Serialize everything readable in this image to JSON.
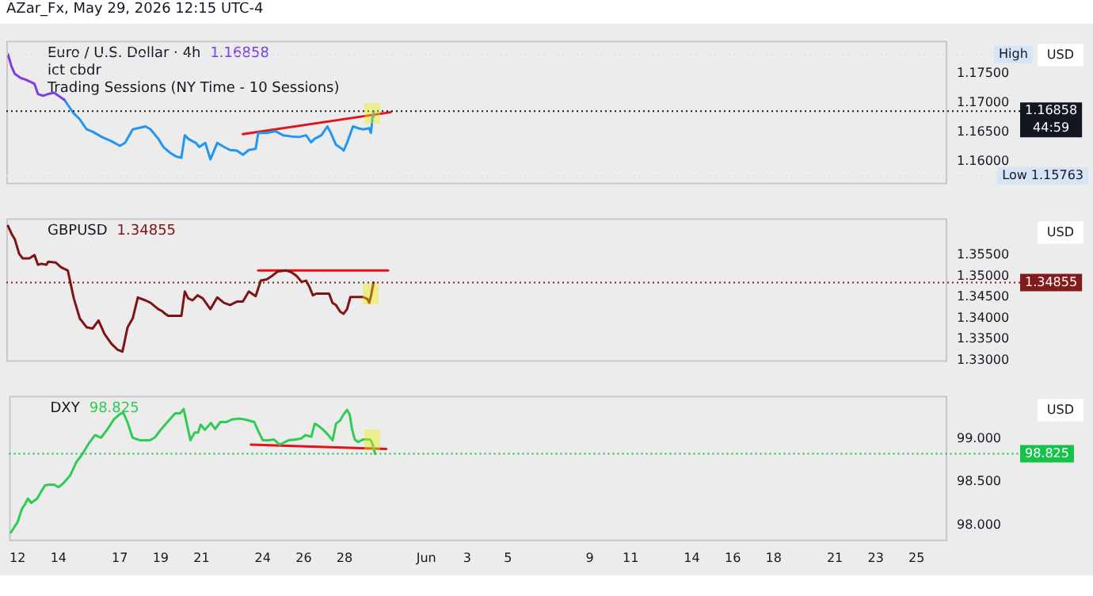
{
  "chart_data": [
    {
      "type": "other",
      "title": "AZar_Fx, May 29, 2026 12:15 UTC-4"
    },
    {
      "type": "line",
      "title": "Euro / U.S. Dollar · 4h",
      "subtitle": "1.16858",
      "ylabel": "USD",
      "tick_labels": "y",
      "annotations": [
        "ict cbdr",
        "Trading Sessions (NY Time - 10 Sessions)"
      ],
      "xlim": [
        "2026-05-11T14:00",
        "2026-06-26T12:00"
      ],
      "ylim": [
        1.1562,
        1.1805
      ],
      "yticks": [
        {
          "value": 1.16,
          "label": "1.16000"
        },
        {
          "value": 1.165,
          "label": "1.16500"
        },
        {
          "value": 1.17,
          "label": "1.17000"
        },
        {
          "value": 1.175,
          "label": "1.17500"
        }
      ],
      "ref_lines": [
        {
          "axis": "y",
          "value": 1.16858,
          "label": "1.16858\n44:59",
          "color": "#131722",
          "line_style": "dotted"
        },
        {
          "axis": "y",
          "value": 1.1782,
          "label": "High",
          "color": "#d6e4f5",
          "line_style": "dotted"
        },
        {
          "axis": "y",
          "value": 1.15763,
          "label": "Low 1.15763",
          "color": "#d6e4f5",
          "line_style": "dotted"
        }
      ],
      "series": [
        {
          "color": "#7b3fe4",
          "x": [
            "2026-05-11T16:00",
            "2026-05-11T20:00",
            "2026-05-12T00:00",
            "2026-05-12T07:00",
            "2026-05-12T13:00",
            "2026-05-12T19:00",
            "2026-05-12T23:00",
            "2026-05-13T03:00",
            "2026-05-13T09:00",
            "2026-05-13T15:00",
            "2026-05-13T22:00",
            "2026-05-14T03:00",
            "2026-05-14T10:00"
          ],
          "values": [
            1.1782,
            1.1762,
            1.1749,
            1.1742,
            1.1739,
            1.1735,
            1.1732,
            1.1715,
            1.1712,
            1.1715,
            1.1717,
            1.1712,
            1.1705
          ]
        },
        {
          "color": "#2196f3",
          "x": [
            "2026-05-14T10:00",
            "2026-05-14T21:00",
            "2026-05-15T04:00",
            "2026-05-15T12:00",
            "2026-05-15T19:00",
            "2026-05-16T06:00",
            "2026-05-16T17:00",
            "2026-05-17T03:00",
            "2026-05-17T09:00",
            "2026-05-17T18:00",
            "2026-05-18T09:00",
            "2026-05-18T15:00",
            "2026-05-19T00:00",
            "2026-05-19T06:00",
            "2026-05-19T14:00",
            "2026-05-19T21:00",
            "2026-05-20T03:00",
            "2026-05-20T07:00",
            "2026-05-20T11:00",
            "2026-05-20T16:00",
            "2026-05-20T20:00",
            "2026-05-21T00:00",
            "2026-05-21T07:00",
            "2026-05-21T13:00",
            "2026-05-21T21:00",
            "2026-05-22T05:00",
            "2026-05-22T12:00",
            "2026-05-22T20:00",
            "2026-05-23T03:00",
            "2026-05-23T10:00",
            "2026-05-23T18:00",
            "2026-05-23T21:00",
            "2026-05-24T07:00",
            "2026-05-24T17:00",
            "2026-05-25T02:00",
            "2026-05-25T12:00",
            "2026-05-25T21:00",
            "2026-05-26T05:00",
            "2026-05-26T11:00",
            "2026-05-26T15:00",
            "2026-05-26T23:00",
            "2026-05-27T06:00",
            "2026-05-27T10:00",
            "2026-05-27T16:00",
            "2026-05-27T23:00",
            "2026-05-28T01:00",
            "2026-05-28T05:00",
            "2026-05-28T12:00",
            "2026-05-28T18:00",
            "2026-05-29T00:00",
            "2026-05-29T07:00",
            "2026-05-29T09:00",
            "2026-05-29T11:00",
            "2026-05-29T12:00"
          ],
          "values": [
            1.1705,
            1.1682,
            1.1672,
            1.1655,
            1.1651,
            1.1642,
            1.1635,
            1.1627,
            1.1632,
            1.1655,
            1.166,
            1.1655,
            1.1639,
            1.1625,
            1.1615,
            1.1609,
            1.1607,
            1.1645,
            1.1639,
            1.1635,
            1.1632,
            1.1625,
            1.1632,
            1.1604,
            1.1632,
            1.1625,
            1.162,
            1.1619,
            1.1612,
            1.162,
            1.1622,
            1.1649,
            1.1649,
            1.1652,
            1.1645,
            1.1643,
            1.1642,
            1.1645,
            1.1633,
            1.1639,
            1.1645,
            1.166,
            1.1649,
            1.1629,
            1.1622,
            1.1619,
            1.1632,
            1.166,
            1.1657,
            1.1655,
            1.1657,
            1.1649,
            1.1677,
            1.16858
          ]
        },
        {
          "color": "#e3121b",
          "x": [
            "2026-05-23T03:00",
            "2026-05-30T08:00"
          ],
          "values": [
            1.1647,
            1.1684
          ]
        }
      ]
    },
    {
      "type": "line",
      "title": "GBPUSD",
      "subtitle": "1.34855",
      "ylabel": "USD",
      "tick_labels": "y",
      "xlim": [
        "2026-05-11T14:00",
        "2026-06-26T12:00"
      ],
      "ylim": [
        1.3297,
        1.3638
      ],
      "yticks": [
        {
          "value": 1.33,
          "label": "1.33000"
        },
        {
          "value": 1.335,
          "label": "1.33500"
        },
        {
          "value": 1.34,
          "label": "1.34000"
        },
        {
          "value": 1.345,
          "label": "1.34500"
        },
        {
          "value": 1.35,
          "label": "1.35000"
        },
        {
          "value": 1.355,
          "label": "1.35500"
        }
      ],
      "ref_lines": [
        {
          "axis": "y",
          "value": 1.34855,
          "label": "1.34855",
          "color": "#801c1c",
          "line_style": "dotted"
        }
      ],
      "series": [
        {
          "color": "#7f1416",
          "x": [
            "2026-05-11T16:00",
            "2026-05-11T20:00",
            "2026-05-12T00:00",
            "2026-05-12T05:00",
            "2026-05-12T09:00",
            "2026-05-12T17:00",
            "2026-05-12T23:00",
            "2026-05-13T03:00",
            "2026-05-13T07:00",
            "2026-05-13T13:00",
            "2026-05-13T15:00",
            "2026-05-14T00:00",
            "2026-05-14T06:00",
            "2026-05-14T14:00",
            "2026-05-14T21:00",
            "2026-05-15T04:00",
            "2026-05-15T12:00",
            "2026-05-15T19:00",
            "2026-05-16T02:00",
            "2026-05-16T09:00",
            "2026-05-16T17:00",
            "2026-05-17T00:00",
            "2026-05-17T06:00",
            "2026-05-17T12:00",
            "2026-05-17T18:00",
            "2026-05-18T00:00",
            "2026-05-18T09:00",
            "2026-05-18T15:00",
            "2026-05-19T00:00",
            "2026-05-19T04:00",
            "2026-05-19T08:00",
            "2026-05-19T12:00",
            "2026-05-19T17:00",
            "2026-05-20T03:00",
            "2026-05-20T07:00",
            "2026-05-20T11:00",
            "2026-05-20T16:00",
            "2026-05-20T22:00",
            "2026-05-21T04:00",
            "2026-05-21T13:00",
            "2026-05-21T21:00",
            "2026-05-22T05:00",
            "2026-05-22T12:00",
            "2026-05-22T20:00",
            "2026-05-23T03:00",
            "2026-05-23T10:00",
            "2026-05-23T18:00",
            "2026-05-24T00:00",
            "2026-05-24T07:00",
            "2026-05-24T13:00",
            "2026-05-24T20:00",
            "2026-05-25T06:00",
            "2026-05-25T12:00",
            "2026-05-25T18:00",
            "2026-05-26T00:00",
            "2026-05-26T05:00",
            "2026-05-26T09:00",
            "2026-05-26T13:00",
            "2026-05-26T17:00",
            "2026-05-27T08:00",
            "2026-05-27T12:00",
            "2026-05-27T16:00",
            "2026-05-27T21:00",
            "2026-05-28T01:00",
            "2026-05-28T05:00",
            "2026-05-28T09:00",
            "2026-05-28T16:00",
            "2026-05-29T00:00",
            "2026-05-29T05:00",
            "2026-05-29T07:00",
            "2026-05-29T09:00",
            "2026-05-29T12:00"
          ],
          "values": [
            1.362,
            1.3602,
            1.3588,
            1.3554,
            1.3543,
            1.3543,
            1.3551,
            1.3528,
            1.353,
            1.3528,
            1.3535,
            1.3533,
            1.3522,
            1.3514,
            1.3448,
            1.34,
            1.3379,
            1.3376,
            1.3395,
            1.3363,
            1.334,
            1.3326,
            1.3321,
            1.3379,
            1.34,
            1.345,
            1.3443,
            1.3437,
            1.3422,
            1.3418,
            1.3411,
            1.3406,
            1.3406,
            1.3406,
            1.3464,
            1.3448,
            1.3443,
            1.3455,
            1.3448,
            1.3422,
            1.345,
            1.3437,
            1.3432,
            1.344,
            1.344,
            1.3464,
            1.3453,
            1.349,
            1.3493,
            1.3501,
            1.3512,
            1.3514,
            1.351,
            1.3501,
            1.3487,
            1.349,
            1.3475,
            1.3455,
            1.3459,
            1.3459,
            1.3437,
            1.3432,
            1.3416,
            1.3411,
            1.3422,
            1.3451,
            1.3451,
            1.3451,
            1.3446,
            1.3437,
            1.3453,
            1.34855
          ]
        },
        {
          "color": "#e3121b",
          "x": [
            "2026-05-23T21:00",
            "2026-05-30T05:00"
          ],
          "values": [
            1.3514,
            1.3514
          ]
        }
      ]
    },
    {
      "type": "line",
      "title": "DXY",
      "subtitle": "98.825",
      "ylabel": "USD",
      "xlim": [
        "2026-05-11T14:00",
        "2026-06-26T12:00"
      ],
      "ylim": [
        97.82,
        99.49
      ],
      "xticks": [
        {
          "value": "2026-05-12",
          "label": "12"
        },
        {
          "value": "2026-05-14",
          "label": "14"
        },
        {
          "value": "2026-05-17",
          "label": "17"
        },
        {
          "value": "2026-05-19",
          "label": "19"
        },
        {
          "value": "2026-05-21",
          "label": "21"
        },
        {
          "value": "2026-05-24",
          "label": "24"
        },
        {
          "value": "2026-05-26",
          "label": "26"
        },
        {
          "value": "2026-05-28",
          "label": "28"
        },
        {
          "value": "2026-06-01",
          "label": "Jun"
        },
        {
          "value": "2026-06-03",
          "label": "3"
        },
        {
          "value": "2026-06-05",
          "label": "5"
        },
        {
          "value": "2026-06-09",
          "label": "9"
        },
        {
          "value": "2026-06-11",
          "label": "11"
        },
        {
          "value": "2026-06-14",
          "label": "14"
        },
        {
          "value": "2026-06-16",
          "label": "16"
        },
        {
          "value": "2026-06-18",
          "label": "18"
        },
        {
          "value": "2026-06-21",
          "label": "21"
        },
        {
          "value": "2026-06-23",
          "label": "23"
        },
        {
          "value": "2026-06-25",
          "label": "25"
        }
      ],
      "yticks": [
        {
          "value": 98,
          "label": "98.000"
        },
        {
          "value": 98.5,
          "label": "98.500"
        },
        {
          "value": 99,
          "label": "99.000"
        }
      ],
      "ref_lines": [
        {
          "axis": "y",
          "value": 98.825,
          "label": "98.825",
          "color": "#17c24a",
          "line_style": "dotted"
        }
      ],
      "series": [
        {
          "color": "#2ecc55",
          "x": [
            "2026-05-11T16:00",
            "2026-05-11T20:00",
            "2026-05-12T00:00",
            "2026-05-12T05:00",
            "2026-05-12T09:00",
            "2026-05-12T12:00",
            "2026-05-12T16:00",
            "2026-05-12T23:00",
            "2026-05-13T03:00",
            "2026-05-13T08:00",
            "2026-05-13T13:00",
            "2026-05-13T19:00",
            "2026-05-14T00:00",
            "2026-05-14T06:00",
            "2026-05-14T14:00",
            "2026-05-14T21:00",
            "2026-05-15T04:00",
            "2026-05-15T12:00",
            "2026-05-15T19:00",
            "2026-05-16T02:00",
            "2026-05-16T09:00",
            "2026-05-16T17:00",
            "2026-05-17T00:00",
            "2026-05-17T04:00",
            "2026-05-17T09:00",
            "2026-05-17T15:00",
            "2026-05-18T00:00",
            "2026-05-18T11:00",
            "2026-05-18T17:00",
            "2026-05-19T00:00",
            "2026-05-19T08:00",
            "2026-05-19T17:00",
            "2026-05-19T23:00",
            "2026-05-20T03:00",
            "2026-05-20T07:00",
            "2026-05-20T11:00",
            "2026-05-20T16:00",
            "2026-05-20T20:00",
            "2026-05-20T23:00",
            "2026-05-21T04:00",
            "2026-05-21T11:00",
            "2026-05-21T16:00",
            "2026-05-21T22:00",
            "2026-05-22T05:00",
            "2026-05-22T12:00",
            "2026-05-22T20:00",
            "2026-05-23T03:00",
            "2026-05-23T14:00",
            "2026-05-23T18:00",
            "2026-05-24T00:00",
            "2026-05-24T07:00",
            "2026-05-24T13:00",
            "2026-05-24T20:00",
            "2026-05-25T06:00",
            "2026-05-25T15:00",
            "2026-05-25T21:00",
            "2026-05-26T02:00",
            "2026-05-26T09:00",
            "2026-05-26T13:00",
            "2026-05-26T17:00",
            "2026-05-26T23:00",
            "2026-05-27T04:00",
            "2026-05-27T10:00",
            "2026-05-27T14:00",
            "2026-05-27T19:00",
            "2026-05-27T23:00",
            "2026-05-28T03:00",
            "2026-05-28T06:00",
            "2026-05-28T09:00",
            "2026-05-28T12:00",
            "2026-05-28T16:00",
            "2026-05-28T22:00",
            "2026-05-29T06:00",
            "2026-05-29T08:00",
            "2026-05-29T12:00"
          ],
          "values": [
            97.92,
            97.98,
            98.04,
            98.19,
            98.25,
            98.31,
            98.26,
            98.31,
            98.38,
            98.46,
            98.47,
            98.47,
            98.44,
            98.49,
            98.58,
            98.73,
            98.82,
            98.95,
            99.04,
            99.01,
            99.1,
            99.22,
            99.28,
            99.3,
            99.19,
            99.01,
            98.98,
            98.98,
            99.01,
            99.1,
            99.19,
            99.29,
            99.29,
            99.34,
            99.16,
            98.98,
            99.07,
            99.07,
            99.16,
            99.1,
            99.18,
            99.11,
            99.19,
            99.19,
            99.22,
            99.23,
            99.22,
            99.19,
            99.1,
            98.98,
            98.98,
            98.99,
            98.93,
            98.98,
            98.99,
            99.0,
            99.04,
            99.02,
            99.17,
            99.15,
            99.1,
            99.05,
            98.98,
            99.17,
            99.21,
            99.28,
            99.33,
            99.28,
            99.1,
            98.99,
            98.96,
            98.99,
            98.99,
            98.96,
            98.825
          ]
        },
        {
          "color": "#e3121b",
          "x": [
            "2026-05-23T10:00",
            "2026-05-30T01:00"
          ],
          "values": [
            98.93,
            98.88
          ]
        }
      ]
    }
  ]
}
